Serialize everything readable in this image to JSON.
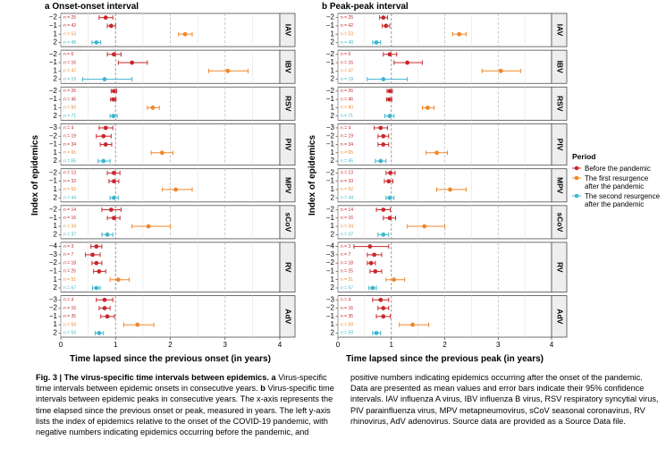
{
  "chart_data": {
    "type": "scatter",
    "panels": [
      {
        "letter": "a",
        "title": "Onset-onset interval",
        "xlabel": "Time lapsed since the previous onset (in years)",
        "ylabel": "Index of epidemics",
        "xlim": [
          0,
          4
        ],
        "xticks": [
          "0",
          "1",
          "2",
          "3",
          "4"
        ],
        "viruses": [
          {
            "name": "IAV",
            "rows": [
              {
                "index": "−2",
                "n": "n = 25",
                "period": 0,
                "mean": 0.82,
                "lo": 0.7,
                "hi": 0.95
              },
              {
                "index": "−1",
                "n": "n = 42",
                "period": 0,
                "mean": 0.92,
                "lo": 0.85,
                "hi": 1.0
              },
              {
                "index": "1",
                "n": "n = 53",
                "period": 1,
                "mean": 2.27,
                "lo": 2.15,
                "hi": 2.4
              },
              {
                "index": "2",
                "n": "n = 48",
                "period": 2,
                "mean": 0.65,
                "lo": 0.57,
                "hi": 0.73
              }
            ]
          },
          {
            "name": "IBV",
            "rows": [
              {
                "index": "−2",
                "n": "n = 6",
                "period": 0,
                "mean": 0.97,
                "lo": 0.85,
                "hi": 1.1
              },
              {
                "index": "−1",
                "n": "n = 16",
                "period": 0,
                "mean": 1.3,
                "lo": 1.05,
                "hi": 1.58
              },
              {
                "index": "1",
                "n": "n = 47",
                "period": 1,
                "mean": 3.05,
                "lo": 2.7,
                "hi": 3.42
              },
              {
                "index": "2",
                "n": "n = 19",
                "period": 2,
                "mean": 0.8,
                "lo": 0.4,
                "hi": 1.3
              }
            ]
          },
          {
            "name": "RSV",
            "rows": [
              {
                "index": "−2",
                "n": "n = 26",
                "period": 0,
                "mean": 0.97,
                "lo": 0.92,
                "hi": 1.02
              },
              {
                "index": "−1",
                "n": "n = 46",
                "period": 0,
                "mean": 0.96,
                "lo": 0.91,
                "hi": 1.01
              },
              {
                "index": "1",
                "n": "n = 60",
                "period": 1,
                "mean": 1.68,
                "lo": 1.58,
                "hi": 1.8
              },
              {
                "index": "2",
                "n": "n = 71",
                "period": 2,
                "mean": 0.96,
                "lo": 0.9,
                "hi": 1.03
              }
            ]
          },
          {
            "name": "PIV",
            "rows": [
              {
                "index": "−3",
                "n": "n = 4",
                "period": 0,
                "mean": 0.82,
                "lo": 0.7,
                "hi": 0.95
              },
              {
                "index": "−2",
                "n": "n = 19",
                "period": 0,
                "mean": 0.78,
                "lo": 0.65,
                "hi": 0.92
              },
              {
                "index": "−1",
                "n": "n = 34",
                "period": 0,
                "mean": 0.82,
                "lo": 0.72,
                "hi": 0.93
              },
              {
                "index": "1",
                "n": "n = 65",
                "period": 1,
                "mean": 1.85,
                "lo": 1.65,
                "hi": 2.05
              },
              {
                "index": "2",
                "n": "n = 65",
                "period": 2,
                "mean": 0.78,
                "lo": 0.68,
                "hi": 0.9
              }
            ]
          },
          {
            "name": "MPV",
            "rows": [
              {
                "index": "−2",
                "n": "n = 13",
                "period": 0,
                "mean": 0.97,
                "lo": 0.85,
                "hi": 1.08
              },
              {
                "index": "−1",
                "n": "n = 33",
                "period": 0,
                "mean": 0.97,
                "lo": 0.88,
                "hi": 1.06
              },
              {
                "index": "1",
                "n": "n = 52",
                "period": 1,
                "mean": 2.1,
                "lo": 1.85,
                "hi": 2.4
              },
              {
                "index": "2",
                "n": "n = 44",
                "period": 2,
                "mean": 0.97,
                "lo": 0.9,
                "hi": 1.05
              }
            ]
          },
          {
            "name": "sCoV",
            "rows": [
              {
                "index": "−2",
                "n": "n = 14",
                "period": 0,
                "mean": 0.92,
                "lo": 0.75,
                "hi": 1.1
              },
              {
                "index": "−1",
                "n": "n = 16",
                "period": 0,
                "mean": 0.97,
                "lo": 0.85,
                "hi": 1.08
              },
              {
                "index": "1",
                "n": "n = 34",
                "period": 1,
                "mean": 1.6,
                "lo": 1.3,
                "hi": 2.0
              },
              {
                "index": "2",
                "n": "n = 37",
                "period": 2,
                "mean": 0.85,
                "lo": 0.75,
                "hi": 0.95
              }
            ]
          },
          {
            "name": "RV",
            "rows": [
              {
                "index": "−4",
                "n": "n = 3",
                "period": 0,
                "mean": 0.65,
                "lo": 0.55,
                "hi": 0.75
              },
              {
                "index": "−3",
                "n": "n = 7",
                "period": 0,
                "mean": 0.58,
                "lo": 0.45,
                "hi": 0.72
              },
              {
                "index": "−2",
                "n": "n = 18",
                "period": 0,
                "mean": 0.65,
                "lo": 0.57,
                "hi": 0.75
              },
              {
                "index": "−1",
                "n": "n = 25",
                "period": 0,
                "mean": 0.7,
                "lo": 0.6,
                "hi": 0.82
              },
              {
                "index": "1",
                "n": "n = 51",
                "period": 1,
                "mean": 1.05,
                "lo": 0.9,
                "hi": 1.25
              },
              {
                "index": "2",
                "n": "n = 57",
                "period": 2,
                "mean": 0.65,
                "lo": 0.58,
                "hi": 0.72
              }
            ]
          },
          {
            "name": "AdV",
            "rows": [
              {
                "index": "−3",
                "n": "n = 4",
                "period": 0,
                "mean": 0.8,
                "lo": 0.65,
                "hi": 0.95
              },
              {
                "index": "−2",
                "n": "n = 16",
                "period": 0,
                "mean": 0.8,
                "lo": 0.7,
                "hi": 0.9
              },
              {
                "index": "−1",
                "n": "n = 35",
                "period": 0,
                "mean": 0.85,
                "lo": 0.73,
                "hi": 0.98
              },
              {
                "index": "1",
                "n": "n = 59",
                "period": 1,
                "mean": 1.4,
                "lo": 1.15,
                "hi": 1.7
              },
              {
                "index": "2",
                "n": "n = 59",
                "period": 2,
                "mean": 0.7,
                "lo": 0.63,
                "hi": 0.78
              }
            ]
          }
        ]
      },
      {
        "letter": "b",
        "title": "Peak-peak interval",
        "xlabel": "Time lapsed since the previous peak (in years)",
        "ylabel": "Index of epidemics",
        "xlim": [
          0,
          4
        ],
        "xticks": [
          "0",
          "1",
          "2",
          "3",
          "4"
        ],
        "viruses": [
          {
            "name": "IAV",
            "rows": [
              {
                "index": "−2",
                "n": "n = 25",
                "period": 0,
                "mean": 0.85,
                "lo": 0.78,
                "hi": 0.93
              },
              {
                "index": "−1",
                "n": "n = 42",
                "period": 0,
                "mean": 0.9,
                "lo": 0.83,
                "hi": 0.97
              },
              {
                "index": "1",
                "n": "n = 53",
                "period": 1,
                "mean": 2.27,
                "lo": 2.15,
                "hi": 2.4
              },
              {
                "index": "2",
                "n": "n = 48",
                "period": 2,
                "mean": 0.72,
                "lo": 0.65,
                "hi": 0.8
              }
            ]
          },
          {
            "name": "IBV",
            "rows": [
              {
                "index": "−2",
                "n": "n = 6",
                "period": 0,
                "mean": 0.97,
                "lo": 0.85,
                "hi": 1.1
              },
              {
                "index": "−1",
                "n": "n = 16",
                "period": 0,
                "mean": 1.3,
                "lo": 1.05,
                "hi": 1.58
              },
              {
                "index": "1",
                "n": "n = 47",
                "period": 1,
                "mean": 3.05,
                "lo": 2.7,
                "hi": 3.42
              },
              {
                "index": "2",
                "n": "n = 19",
                "period": 2,
                "mean": 0.85,
                "lo": 0.55,
                "hi": 1.3
              }
            ]
          },
          {
            "name": "RSV",
            "rows": [
              {
                "index": "−2",
                "n": "n = 26",
                "period": 0,
                "mean": 0.97,
                "lo": 0.92,
                "hi": 1.02
              },
              {
                "index": "−1",
                "n": "n = 46",
                "period": 0,
                "mean": 0.96,
                "lo": 0.91,
                "hi": 1.01
              },
              {
                "index": "1",
                "n": "n = 60",
                "period": 1,
                "mean": 1.68,
                "lo": 1.58,
                "hi": 1.8
              },
              {
                "index": "2",
                "n": "n = 71",
                "period": 2,
                "mean": 0.97,
                "lo": 0.88,
                "hi": 1.05
              }
            ]
          },
          {
            "name": "PIV",
            "rows": [
              {
                "index": "−3",
                "n": "n = 4",
                "period": 0,
                "mean": 0.8,
                "lo": 0.68,
                "hi": 0.93
              },
              {
                "index": "−2",
                "n": "n = 19",
                "period": 0,
                "mean": 0.85,
                "lo": 0.75,
                "hi": 0.95
              },
              {
                "index": "−1",
                "n": "n = 34",
                "period": 0,
                "mean": 0.85,
                "lo": 0.75,
                "hi": 0.95
              },
              {
                "index": "1",
                "n": "n = 65",
                "period": 1,
                "mean": 1.85,
                "lo": 1.65,
                "hi": 2.05
              },
              {
                "index": "2",
                "n": "n = 65",
                "period": 2,
                "mean": 0.8,
                "lo": 0.7,
                "hi": 0.9
              }
            ]
          },
          {
            "name": "MPV",
            "rows": [
              {
                "index": "−2",
                "n": "n = 13",
                "period": 0,
                "mean": 0.98,
                "lo": 0.9,
                "hi": 1.07
              },
              {
                "index": "−1",
                "n": "n = 33",
                "period": 0,
                "mean": 0.95,
                "lo": 0.87,
                "hi": 1.03
              },
              {
                "index": "1",
                "n": "n = 52",
                "period": 1,
                "mean": 2.1,
                "lo": 1.85,
                "hi": 2.4
              },
              {
                "index": "2",
                "n": "n = 44",
                "period": 2,
                "mean": 0.97,
                "lo": 0.9,
                "hi": 1.05
              }
            ]
          },
          {
            "name": "sCoV",
            "rows": [
              {
                "index": "−2",
                "n": "n = 14",
                "period": 0,
                "mean": 0.85,
                "lo": 0.72,
                "hi": 0.98
              },
              {
                "index": "−1",
                "n": "n = 16",
                "period": 0,
                "mean": 0.97,
                "lo": 0.85,
                "hi": 1.08
              },
              {
                "index": "1",
                "n": "n = 34",
                "period": 1,
                "mean": 1.62,
                "lo": 1.3,
                "hi": 2.0
              },
              {
                "index": "2",
                "n": "n = 37",
                "period": 2,
                "mean": 0.85,
                "lo": 0.75,
                "hi": 0.95
              }
            ]
          },
          {
            "name": "RV",
            "rows": [
              {
                "index": "−4",
                "n": "n = 3",
                "period": 0,
                "mean": 0.6,
                "lo": 0.3,
                "hi": 0.95
              },
              {
                "index": "−3",
                "n": "n = 7",
                "period": 0,
                "mean": 0.68,
                "lo": 0.55,
                "hi": 0.82
              },
              {
                "index": "−2",
                "n": "n = 18",
                "period": 0,
                "mean": 0.62,
                "lo": 0.55,
                "hi": 0.7
              },
              {
                "index": "−1",
                "n": "n = 25",
                "period": 0,
                "mean": 0.7,
                "lo": 0.6,
                "hi": 0.82
              },
              {
                "index": "1",
                "n": "n = 51",
                "period": 1,
                "mean": 1.05,
                "lo": 0.9,
                "hi": 1.25
              },
              {
                "index": "2",
                "n": "n = 57",
                "period": 2,
                "mean": 0.65,
                "lo": 0.58,
                "hi": 0.72
              }
            ]
          },
          {
            "name": "AdV",
            "rows": [
              {
                "index": "−3",
                "n": "n = 4",
                "period": 0,
                "mean": 0.8,
                "lo": 0.65,
                "hi": 0.95
              },
              {
                "index": "−2",
                "n": "n = 16",
                "period": 0,
                "mean": 0.85,
                "lo": 0.75,
                "hi": 0.95
              },
              {
                "index": "−1",
                "n": "n = 35",
                "period": 0,
                "mean": 0.85,
                "lo": 0.72,
                "hi": 0.98
              },
              {
                "index": "1",
                "n": "n = 59",
                "period": 1,
                "mean": 1.4,
                "lo": 1.15,
                "hi": 1.7
              },
              {
                "index": "2",
                "n": "n = 59",
                "period": 2,
                "mean": 0.72,
                "lo": 0.65,
                "hi": 0.8
              }
            ]
          }
        ]
      }
    ],
    "legend": {
      "title": "Period",
      "placement": "right",
      "items": [
        {
          "label": "Before the pandemic",
          "color": "#c8282d"
        },
        {
          "label": "The first resurgence after the pandemic",
          "color": "#f0872a"
        },
        {
          "label": "The second resurgence after the pandemic",
          "color": "#3fb6cf"
        }
      ]
    },
    "colors": {
      "grid_major": "#b5b5b5",
      "grid_minor": "#e3e3e3",
      "ref_line": "#999999",
      "strip_bg": "#eeeeee",
      "panel_bg": "#ffffff"
    }
  },
  "caption": {
    "fig_label": "Fig. 3 | The virus-specific time intervals between epidemics.",
    "a_label": "a",
    "a_text": "Virus-specific time intervals between epidemic onsets in consecutive years.",
    "b_label": "b",
    "b_text": "Virus-specific time intervals between epidemic peaks in consecutive years. The x-axis represents the time elapsed since the previous onset or peak, measured in years. The left y-axis lists the index of epidemics relative to the onset of the COVID-19 pandemic, with negative numbers indicating epidemics occurring before the pandemic, and",
    "right_text": "positive numbers indicating epidemics occurring after the onset of the pandemic. Data are presented as mean values and error bars indicate their 95% confidence intervals. IAV influenza A virus, IBV influenza B virus, RSV respiratory syncytial virus, PIV parainfluenza virus, MPV metapneumovirus, sCoV seasonal coronavirus, RV rhinovirus, AdV adenovirus. Source data are provided as a Source Data file."
  }
}
